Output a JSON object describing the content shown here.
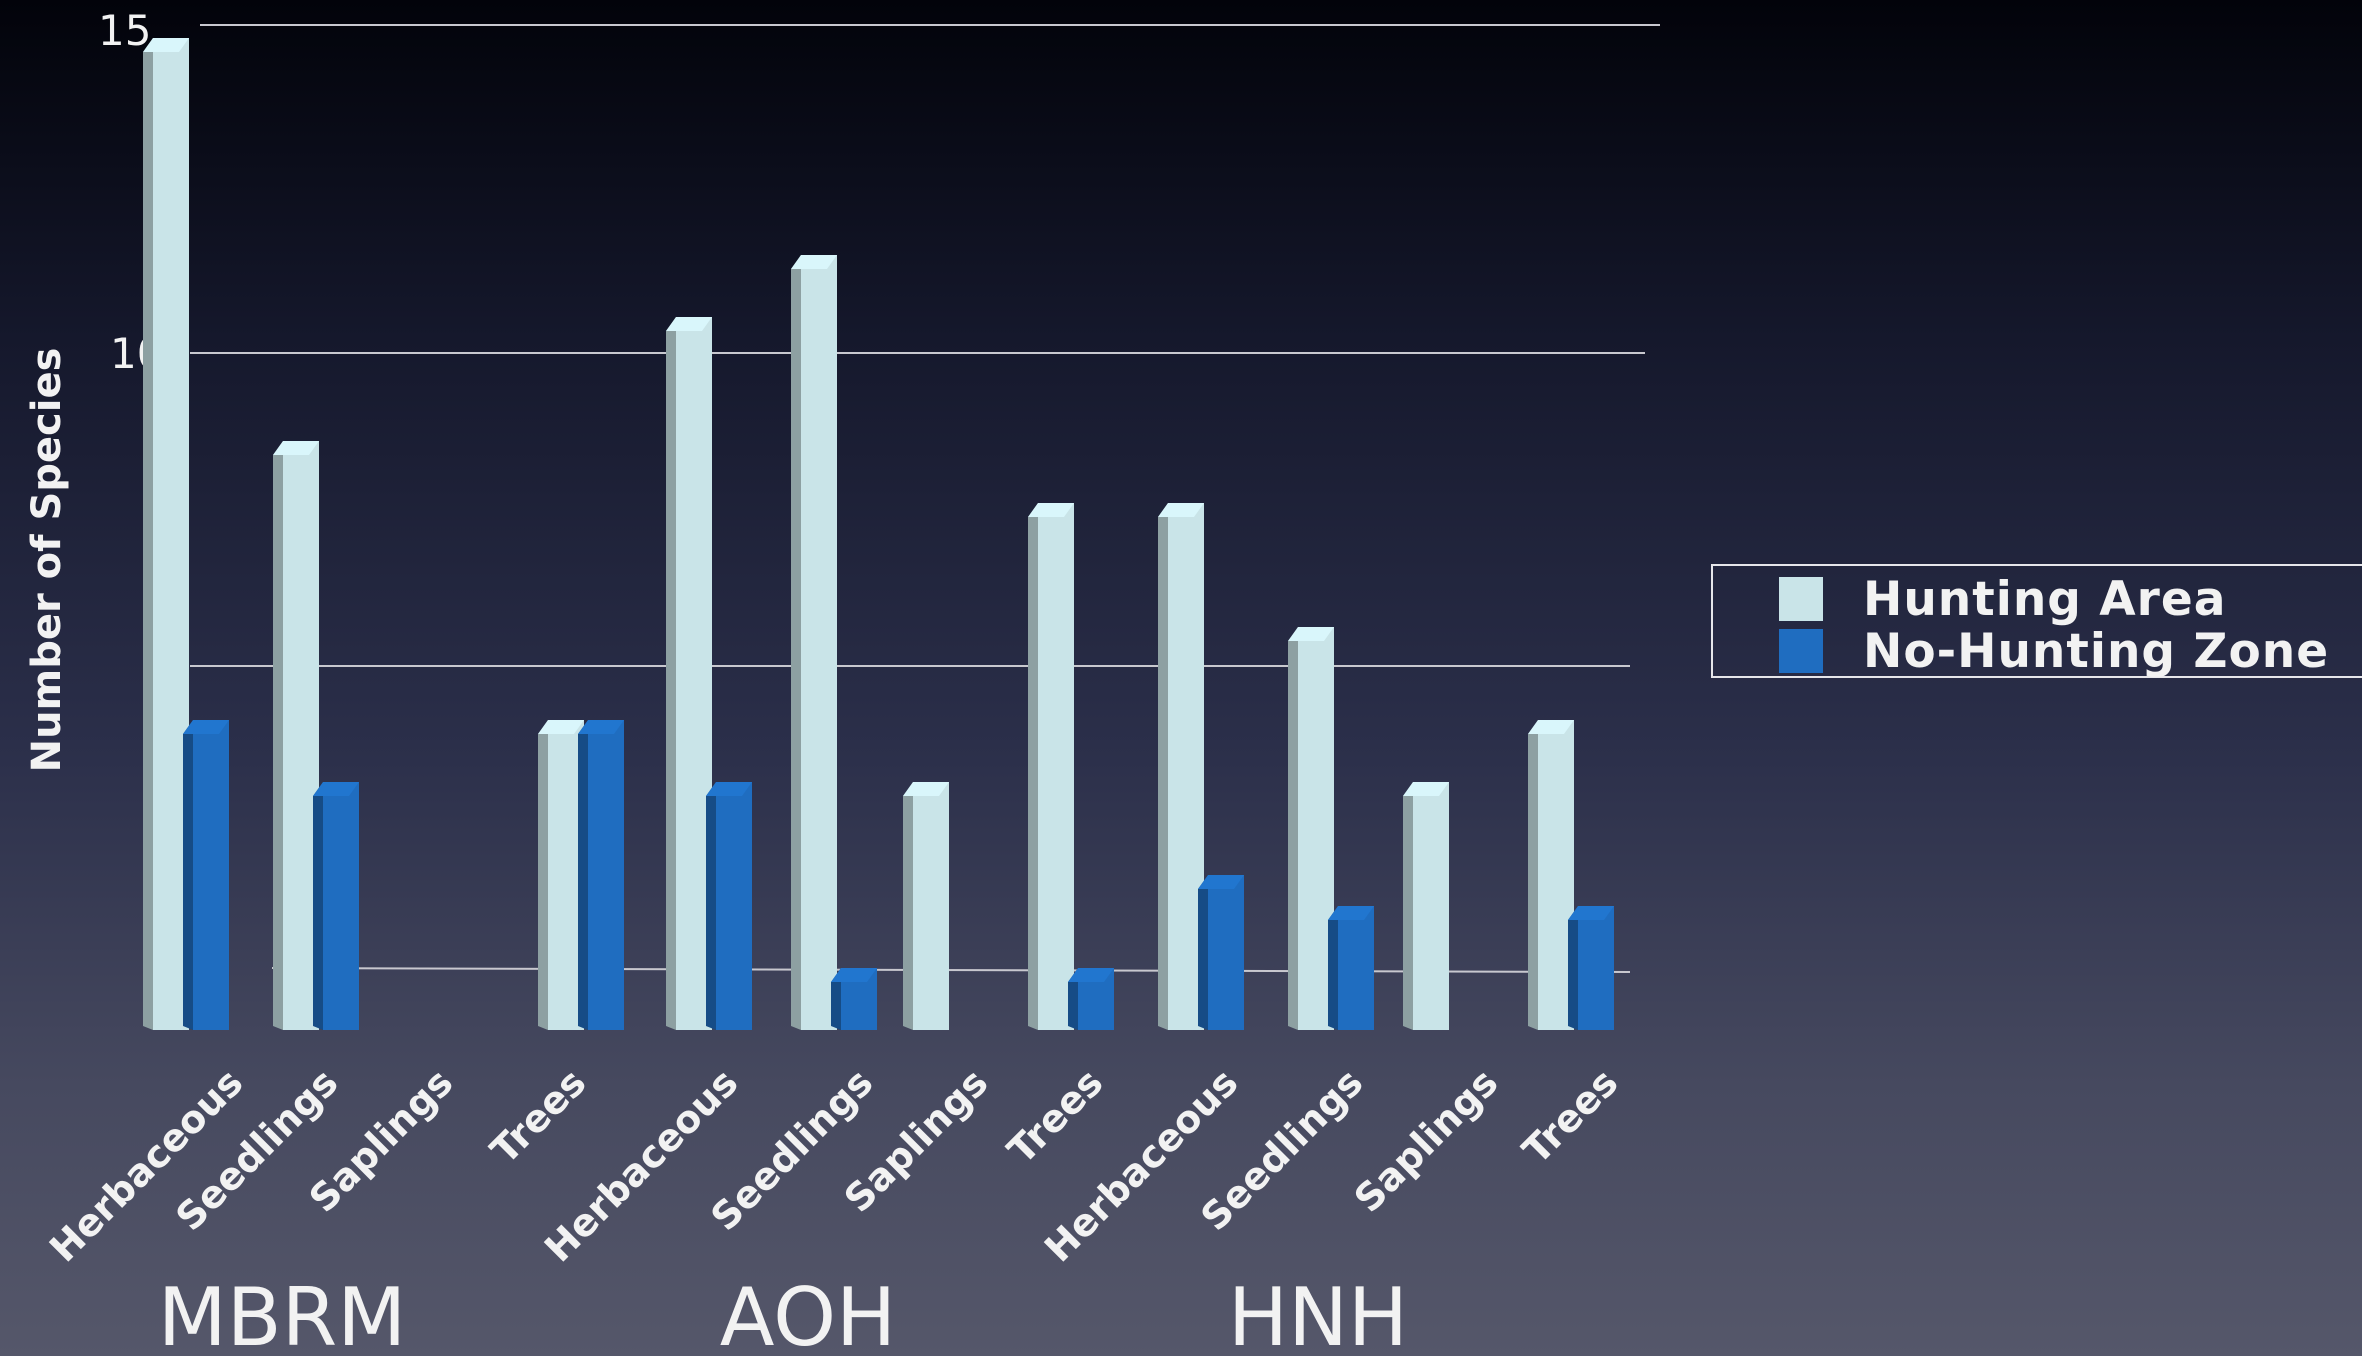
{
  "colors": {
    "hunting": "#c9e4e8",
    "no_hunting": "#1f6dc0",
    "gridline": "#c8c8cf",
    "text": "#f2f2f2"
  },
  "legend": {
    "items": [
      {
        "label": "Hunting Area",
        "color": "#c9e4e8"
      },
      {
        "label": "No-Hunting Zone",
        "color": "#1f6dc0"
      }
    ]
  },
  "chart_data": {
    "type": "bar",
    "title": "",
    "ylabel": "Number of Species",
    "xlabel": "",
    "ylim": [
      0,
      15
    ],
    "yticks": [
      0,
      5,
      10,
      15
    ],
    "grid": true,
    "legend_position": "right",
    "categories": [
      "Herbaceous",
      "Seedlings",
      "Saplings",
      "Trees",
      "Herbaceous",
      "Seedlings",
      "Saplings",
      "Trees",
      "Herbaceous",
      "Seedlings",
      "Saplings",
      "Trees"
    ],
    "groups": [
      "MBRM",
      "AOH",
      "HNH"
    ],
    "series": [
      {
        "name": "Hunting Area",
        "values": [
          16,
          9.5,
          0,
          5,
          11.5,
          12.5,
          4,
          8.5,
          8.5,
          6.5,
          4,
          5
        ]
      },
      {
        "name": "No-Hunting Zone",
        "values": [
          5,
          4,
          0,
          5,
          4,
          1,
          0,
          1,
          2.5,
          2,
          0,
          2
        ]
      }
    ]
  }
}
